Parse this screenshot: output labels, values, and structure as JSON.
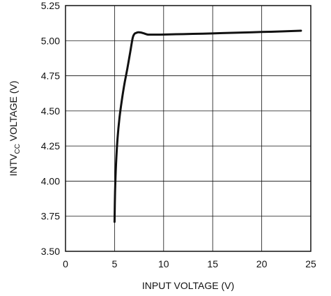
{
  "chart_data": {
    "type": "line",
    "title": "",
    "xlabel": "INPUT VOLTAGE (V)",
    "ylabel": {
      "main": "INTV",
      "sub": "CC",
      "rest": " VOLTAGE (V)"
    },
    "xlim": [
      0,
      25
    ],
    "ylim": [
      3.5,
      5.25
    ],
    "xticks": [
      "0",
      "5",
      "10",
      "15",
      "20",
      "25"
    ],
    "yticks": [
      "3.50",
      "3.75",
      "4.00",
      "4.25",
      "4.50",
      "4.75",
      "5.00",
      "5.25"
    ],
    "grid": true,
    "series": [
      {
        "color": "#111111",
        "x": [
          5.0,
          5.05,
          5.15,
          5.3,
          5.5,
          5.75,
          6.0,
          6.3,
          6.6,
          6.85,
          7.05,
          7.2,
          7.4,
          7.7,
          8.0,
          8.3,
          8.6,
          10,
          12,
          14,
          16,
          18,
          20,
          22,
          24
        ],
        "y": [
          3.71,
          3.92,
          4.12,
          4.3,
          4.45,
          4.58,
          4.69,
          4.8,
          4.92,
          5.02,
          5.05,
          5.055,
          5.06,
          5.058,
          5.052,
          5.045,
          5.043,
          5.044,
          5.047,
          5.05,
          5.054,
          5.058,
          5.062,
          5.066,
          5.071
        ]
      }
    ]
  }
}
